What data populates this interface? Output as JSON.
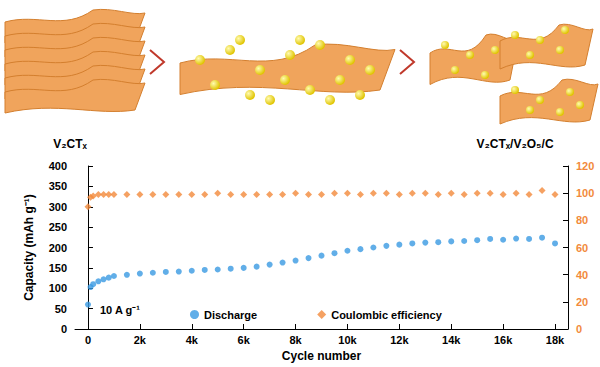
{
  "diagram": {
    "labels": [
      "V₂CTₓ",
      "V₂CTₓ/V₂O₅/C"
    ]
  },
  "chart_data": {
    "type": "scatter",
    "annotations": [
      "10 A g⁻¹"
    ],
    "xlabel": "Cycle number",
    "ylabel": "Capacity (mAh g⁻¹)",
    "x": [
      0,
      100,
      200,
      400,
      600,
      800,
      1000,
      1500,
      2000,
      2500,
      3000,
      3500,
      4000,
      4500,
      5000,
      5500,
      6000,
      6500,
      7000,
      7500,
      8000,
      8500,
      9000,
      9500,
      10000,
      10500,
      11000,
      11500,
      12000,
      12500,
      13000,
      13500,
      14000,
      14500,
      15000,
      15500,
      16000,
      16500,
      17000,
      17500,
      18000
    ],
    "series": [
      {
        "name": "Discharge",
        "color": "#3a9ae2",
        "marker": "circle",
        "values": [
          60,
          103,
          110,
          117,
          122,
          126,
          130,
          133,
          136,
          138,
          140,
          141,
          143,
          145,
          146,
          148,
          150,
          153,
          158,
          163,
          168,
          174,
          180,
          186,
          192,
          196,
          200,
          204,
          207,
          210,
          212,
          213,
          215,
          216,
          218,
          221,
          219,
          222,
          221,
          224,
          210
        ]
      },
      {
        "name": "Coulombic efficiency",
        "color": "#f28a3b",
        "marker": "diamond",
        "axis": "y2",
        "values": [
          90,
          97,
          98,
          99,
          99,
          99,
          99,
          99,
          99,
          99,
          99,
          99,
          99,
          99,
          100,
          99,
          99,
          99,
          99,
          99,
          100,
          99,
          99,
          100,
          100,
          99,
          100,
          100,
          99,
          100,
          100,
          99,
          100,
          99,
          100,
          100,
          99,
          100,
          99,
          102,
          99
        ]
      }
    ],
    "xlim": [
      -500,
      18500
    ],
    "xticks": [
      0,
      {
        "value": 2000,
        "label": "2k"
      },
      {
        "value": 4000,
        "label": "4k"
      },
      {
        "value": 6000,
        "label": "6k"
      },
      {
        "value": 8000,
        "label": "8k"
      },
      {
        "value": 10000,
        "label": "10k"
      },
      {
        "value": 12000,
        "label": "12k"
      },
      {
        "value": 14000,
        "label": "14k"
      },
      {
        "value": 16000,
        "label": "16k"
      },
      {
        "value": 18000,
        "label": "18k"
      }
    ],
    "ylim": [
      0,
      400
    ],
    "yticks": [
      0,
      50,
      100,
      150,
      200,
      250,
      300,
      350,
      400
    ],
    "y2lim": [
      0,
      120
    ],
    "y2ticks": [
      0,
      20,
      40,
      60,
      80,
      100,
      120
    ],
    "grid": false,
    "legend": "bottom"
  }
}
